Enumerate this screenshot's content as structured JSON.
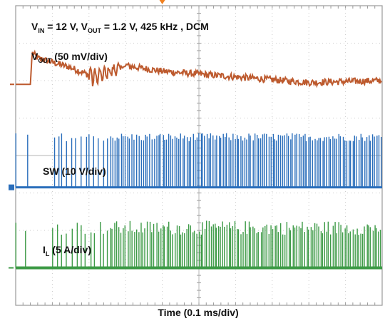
{
  "chart_data": {
    "type": "line",
    "title": "V_IN = 12 V, V_OUT = 1.2 V, 425 kHz , DCM",
    "title_parts": {
      "vin_sym": "V",
      "vin_sub": "IN",
      "vin_val": " = 12 V, ",
      "vout_sym": "V",
      "vout_sub": "OUT",
      "rest": " = 1.2 V, 425 kHz , DCM"
    },
    "xlabel": "Time (0.1 ms/div)",
    "divisions": {
      "x": 10,
      "y": 8
    },
    "grid": true,
    "x_range_ms": [
      0,
      1.0
    ],
    "trigger_x_ms": 0.4,
    "channels": [
      {
        "name": "VOUT",
        "label_sym": "V",
        "label_sub": "OUT",
        "label_rest": " (50 mV/div)",
        "scale": "50 mV/div",
        "color": "#bd5a2e",
        "ground_div": 5.9,
        "x_ms": [
          0,
          0.04,
          0.045,
          0.06,
          0.15,
          0.2,
          0.22,
          0.3,
          0.4,
          0.6,
          0.8,
          1.0
        ],
        "level_div": [
          0,
          0,
          0.85,
          0.7,
          0.45,
          0.25,
          0.2,
          0.5,
          0.35,
          0.2,
          0.05,
          0.1
        ]
      },
      {
        "name": "SW",
        "label": "SW (10 V/div)",
        "scale": "10 V/div",
        "color": "#2a6ebb",
        "ground_div": 3.15,
        "peak_div": 1.45,
        "pulse_density": [
          {
            "from_ms": 0.0,
            "to_ms": 0.05,
            "pulses": 2
          },
          {
            "from_ms": 0.1,
            "to_ms": 0.25,
            "pulses": 12
          },
          {
            "from_ms": 0.25,
            "to_ms": 0.4,
            "pulses": 25
          },
          {
            "from_ms": 0.4,
            "to_ms": 1.0,
            "pulses": 110
          }
        ]
      },
      {
        "name": "IL",
        "label_sym": "I",
        "label_sub": "L",
        "label_rest": " (5 A/div)",
        "scale": "5 A/div",
        "color": "#3d9a46",
        "ground_div": 1.0,
        "peak_div": 1.4
      }
    ]
  }
}
